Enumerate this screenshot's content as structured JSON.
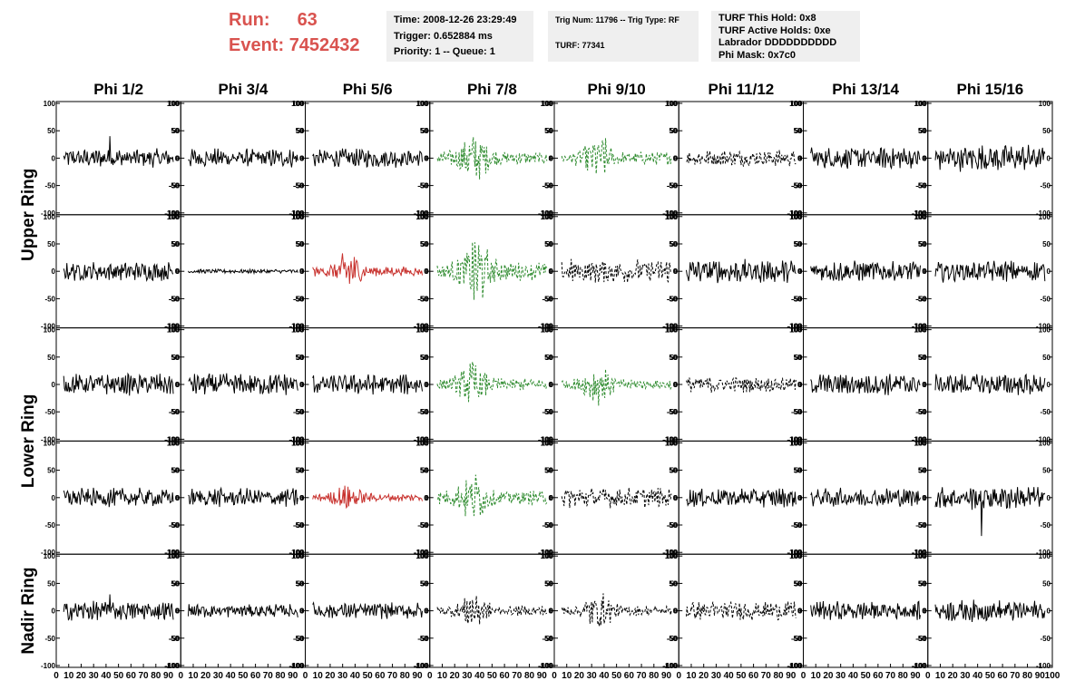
{
  "header": {
    "run_label": "Run:",
    "run_value": "63",
    "event_label": "Event:",
    "event_value": "7452432"
  },
  "info_boxes": [
    {
      "lines": [
        "Time: 2008-12-26 23:29:49",
        "Trigger: 0.652884 ms",
        "Priority: 1 -- Queue: 1"
      ]
    },
    {
      "lines": [
        "Trig Num: 11796 -- Trig Type: RF",
        "",
        "TURF: 77341"
      ]
    },
    {
      "lines": [
        "TURF This Hold: 0x8",
        "TURF Active Holds: 0xe",
        "Labrador DDDDDDDDDD",
        "Phi Mask: 0x7c0"
      ]
    }
  ],
  "colors": {
    "header_text": "#d9534f",
    "info_bg": "#efefef",
    "trace_default": "#000000",
    "trace_red": "#c8322e",
    "trace_green": "#2e8b2e"
  },
  "chart_data": {
    "type": "line",
    "column_titles": [
      "Phi 1/2",
      "Phi 3/4",
      "Phi 5/6",
      "Phi 7/8",
      "Phi 9/10",
      "Phi 11/12",
      "Phi 13/14",
      "Phi 15/16"
    ],
    "ring_labels": [
      {
        "label": "Upper Ring",
        "rows": [
          0,
          1
        ]
      },
      {
        "label": "Lower Ring",
        "rows": [
          2,
          3
        ]
      },
      {
        "label": "Nadir Ring",
        "rows": [
          4
        ]
      }
    ],
    "xlim": [
      0,
      100
    ],
    "ylim": [
      -100,
      100
    ],
    "y_ticks": [
      -100,
      -50,
      0,
      50,
      100
    ],
    "x_tick_labels": [
      "0",
      "10",
      "20",
      "30",
      "40",
      "50",
      "60",
      "70",
      "80",
      "90",
      "100"
    ],
    "rows": 5,
    "cols": 8,
    "panels": [
      [
        {
          "color": "black",
          "dash": false,
          "amp": 14,
          "peak": 40
        },
        {
          "color": "black",
          "dash": false,
          "amp": 14,
          "peak": 0
        },
        {
          "color": "black",
          "dash": false,
          "amp": 14,
          "peak": 0
        },
        {
          "color": "green",
          "dash": true,
          "amp": 40,
          "burst": 35
        },
        {
          "color": "green",
          "dash": true,
          "amp": 38,
          "burst": 35
        },
        {
          "color": "black",
          "dash": true,
          "amp": 12,
          "peak": 0
        },
        {
          "color": "black",
          "dash": false,
          "amp": 16,
          "peak": 0
        },
        {
          "color": "black",
          "dash": false,
          "amp": 20,
          "peak": 0
        }
      ],
      [
        {
          "color": "black",
          "dash": false,
          "amp": 14,
          "peak": 0
        },
        {
          "color": "black",
          "dash": false,
          "amp": 3,
          "peak": 0
        },
        {
          "color": "red",
          "dash": false,
          "amp": 30,
          "burst": 35
        },
        {
          "color": "green",
          "dash": true,
          "amp": 55,
          "burst": 37
        },
        {
          "color": "black",
          "dash": true,
          "amp": 18,
          "peak": 0
        },
        {
          "color": "black",
          "dash": false,
          "amp": 18,
          "peak": 0
        },
        {
          "color": "black",
          "dash": false,
          "amp": 16,
          "peak": 0
        },
        {
          "color": "black",
          "dash": false,
          "amp": 16,
          "peak": 0
        }
      ],
      [
        {
          "color": "black",
          "dash": false,
          "amp": 16,
          "peak": 0
        },
        {
          "color": "black",
          "dash": false,
          "amp": 16,
          "peak": 0
        },
        {
          "color": "black",
          "dash": false,
          "amp": 15,
          "peak": 0
        },
        {
          "color": "green",
          "dash": true,
          "amp": 35,
          "burst": 35
        },
        {
          "color": "green",
          "dash": true,
          "amp": 30,
          "burst": 35
        },
        {
          "color": "black",
          "dash": true,
          "amp": 12,
          "peak": 0
        },
        {
          "color": "black",
          "dash": false,
          "amp": 16,
          "peak": 0
        },
        {
          "color": "black",
          "dash": false,
          "amp": 16,
          "peak": 0
        }
      ],
      [
        {
          "color": "black",
          "dash": false,
          "amp": 14,
          "peak": 0
        },
        {
          "color": "black",
          "dash": false,
          "amp": 14,
          "peak": 0
        },
        {
          "color": "red",
          "dash": false,
          "amp": 22,
          "burst": 35
        },
        {
          "color": "green",
          "dash": true,
          "amp": 40,
          "burst": 35
        },
        {
          "color": "black",
          "dash": true,
          "amp": 15,
          "peak": 0
        },
        {
          "color": "black",
          "dash": false,
          "amp": 14,
          "peak": 0
        },
        {
          "color": "black",
          "dash": false,
          "amp": 14,
          "peak": 0
        },
        {
          "color": "black",
          "dash": false,
          "amp": 18,
          "peak": -70
        }
      ],
      [
        {
          "color": "black",
          "dash": false,
          "amp": 14,
          "peak": 30
        },
        {
          "color": "black",
          "dash": false,
          "amp": 10,
          "peak": 0
        },
        {
          "color": "black",
          "dash": false,
          "amp": 12,
          "peak": 0
        },
        {
          "color": "black",
          "dash": true,
          "amp": 30,
          "burst": 35
        },
        {
          "color": "black",
          "dash": true,
          "amp": 30,
          "burst": 35
        },
        {
          "color": "black",
          "dash": true,
          "amp": 14,
          "peak": 0
        },
        {
          "color": "black",
          "dash": false,
          "amp": 14,
          "peak": 0
        },
        {
          "color": "black",
          "dash": false,
          "amp": 16,
          "peak": 0
        }
      ]
    ]
  }
}
